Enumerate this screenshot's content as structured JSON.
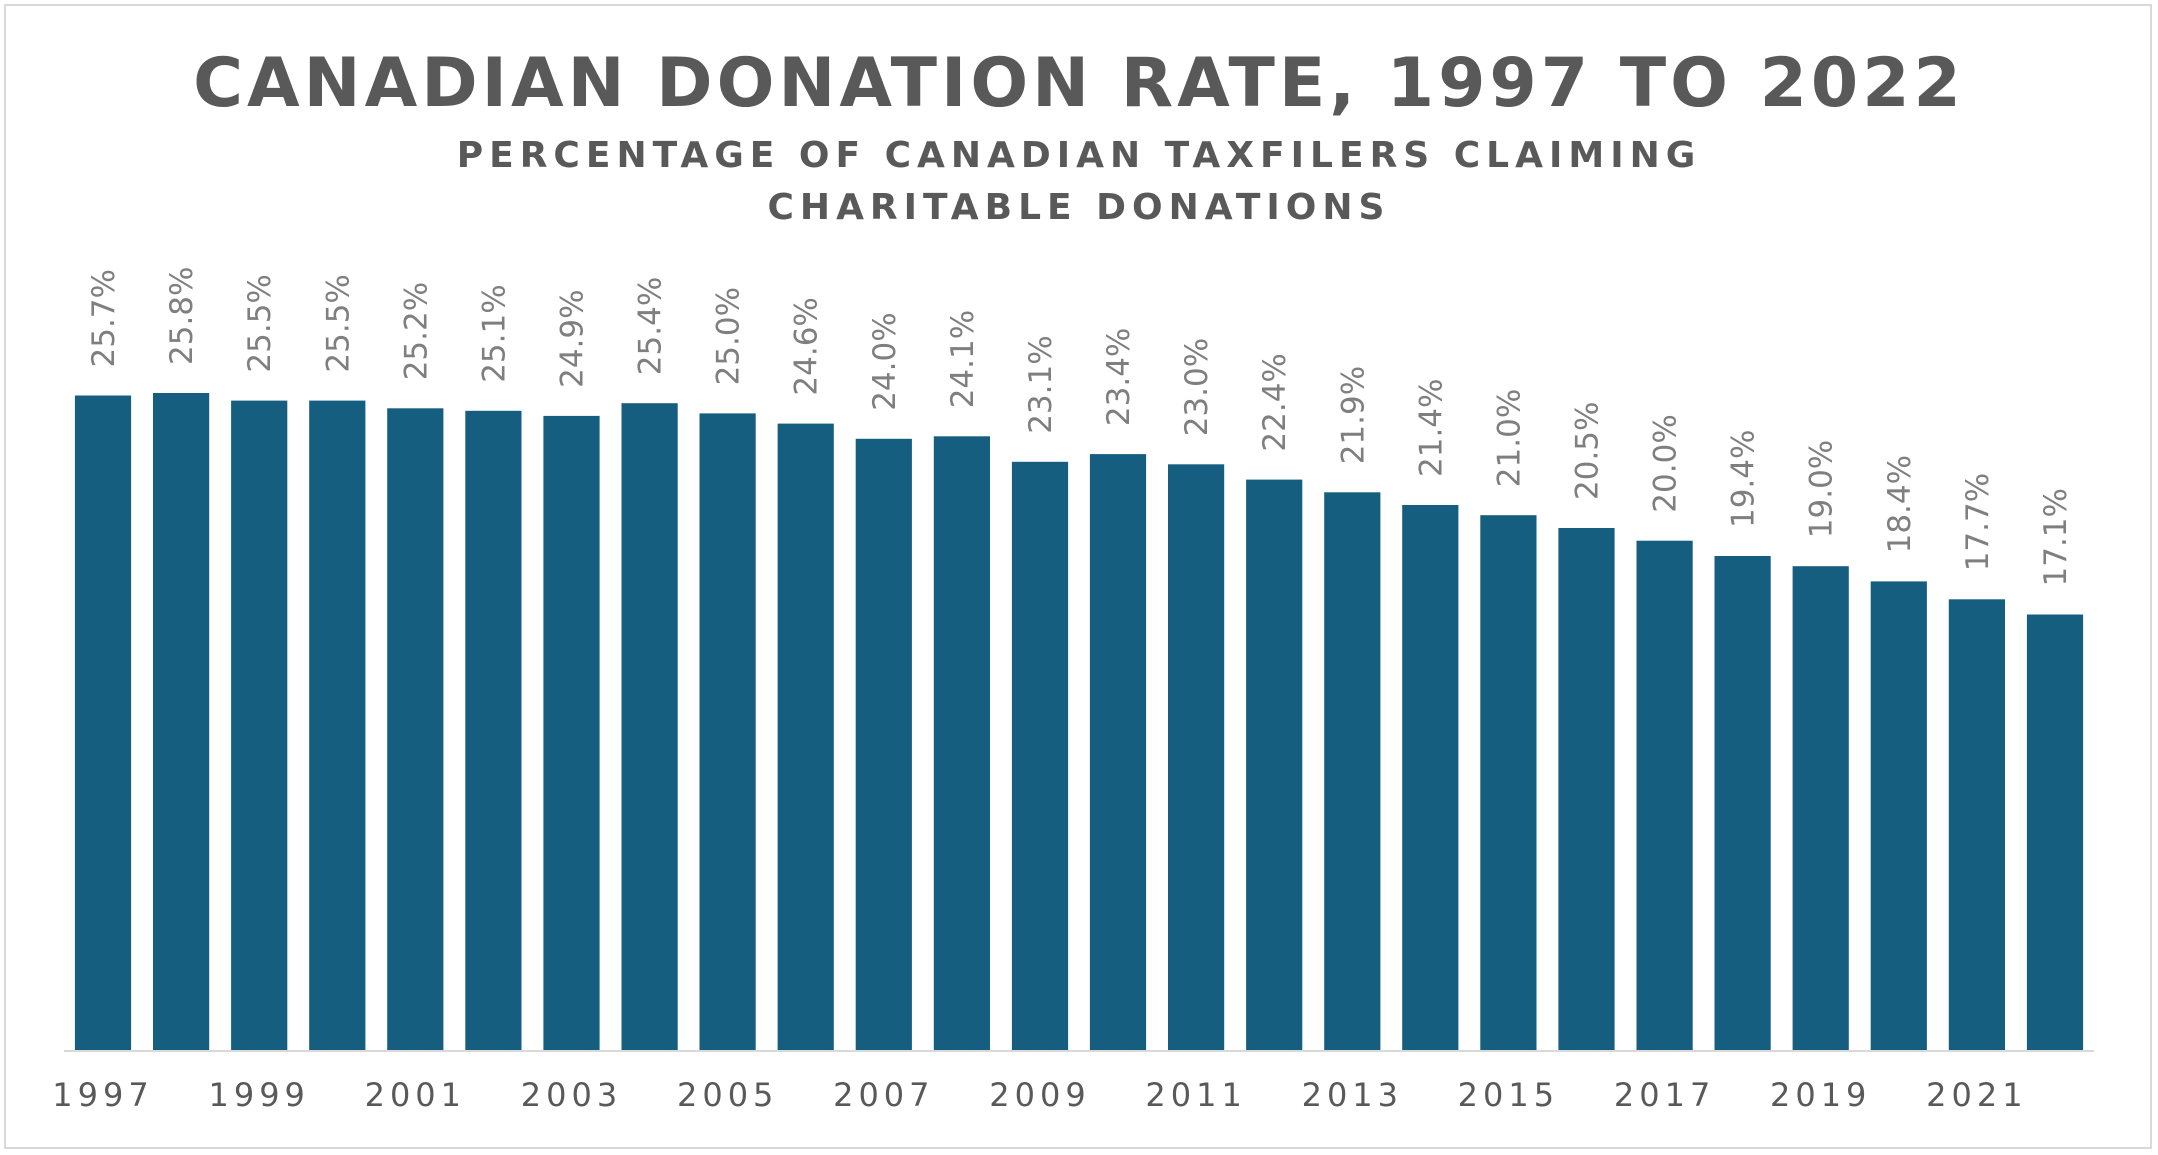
{
  "chart_data": {
    "type": "bar",
    "title": "CANADIAN DONATION RATE, 1997 TO 2022",
    "subtitle": "PERCENTAGE OF CANADIAN TAXFILERS CLAIMING CHARITABLE DONATIONS",
    "categories": [
      "1997",
      "1998",
      "1999",
      "2000",
      "2001",
      "2002",
      "2003",
      "2004",
      "2005",
      "2006",
      "2007",
      "2008",
      "2009",
      "2010",
      "2011",
      "2012",
      "2013",
      "2014",
      "2015",
      "2016",
      "2017",
      "2018",
      "2019",
      "2020",
      "2021",
      "2022"
    ],
    "tick_labels": [
      "1997",
      "1999",
      "2001",
      "2003",
      "2005",
      "2007",
      "2009",
      "2011",
      "2013",
      "2015",
      "2017",
      "2019",
      "2021"
    ],
    "values": [
      25.7,
      25.8,
      25.5,
      25.5,
      25.2,
      25.1,
      24.9,
      25.4,
      25.0,
      24.6,
      24.0,
      24.1,
      23.1,
      23.4,
      23.0,
      22.4,
      21.9,
      21.4,
      21.0,
      20.5,
      20.0,
      19.4,
      19.0,
      18.4,
      17.7,
      17.1
    ],
    "data_labels": [
      "25.7%",
      "25.8%",
      "25.5%",
      "25.5%",
      "25.2%",
      "25.1%",
      "24.9%",
      "25.4%",
      "25.0%",
      "24.6%",
      "24.0%",
      "24.1%",
      "23.1%",
      "23.4%",
      "23.0%",
      "22.4%",
      "21.9%",
      "21.4%",
      "21.0%",
      "20.5%",
      "20.0%",
      "19.4%",
      "19.0%",
      "18.4%",
      "17.7%",
      "17.1%"
    ],
    "xlabel": "",
    "ylabel": "",
    "ylim": [
      0,
      25.8
    ],
    "grid": false,
    "legend": "none",
    "bar_color": "#165e80"
  }
}
